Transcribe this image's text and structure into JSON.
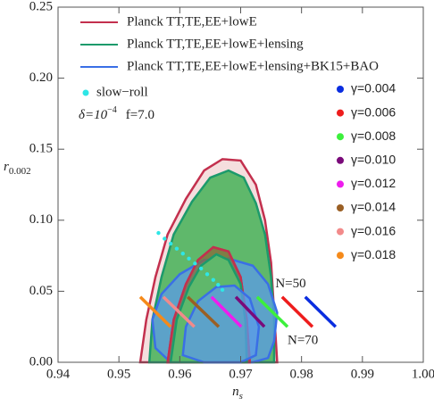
{
  "chart_data": {
    "type": "scatter",
    "x_label": {
      "text": "n",
      "sub": "s"
    },
    "y_label": {
      "text": "r",
      "sub": "0.002"
    },
    "xlim": [
      0.94,
      1.0
    ],
    "xticks": [
      0.94,
      0.95,
      0.96,
      0.97,
      0.98,
      0.99,
      {
        "value": 1.0,
        "label": "1.00"
      }
    ],
    "ylim": [
      0,
      0.25
    ],
    "yticks": [
      {
        "value": 0,
        "label": "0.00"
      },
      0.05,
      {
        "value": 0.1,
        "label": "0.10"
      },
      0.15,
      {
        "value": 0.2,
        "label": "0.20"
      },
      0.25
    ],
    "contours": [
      {
        "name": "Planck TT,TE,EE+lowE",
        "color": "#c3304e",
        "fill": "#f5dede",
        "levels": [
          {
            "x": [
              0.9535,
              0.9545,
              0.956,
              0.958,
              0.961,
              0.964,
              0.967,
              0.97,
              0.9725,
              0.974,
              0.975,
              0.9755,
              0.976
            ],
            "y": [
              0,
              0.03,
              0.06,
              0.09,
              0.115,
              0.135,
              0.143,
              0.142,
              0.125,
              0.1,
              0.07,
              0.035,
              0
            ]
          },
          {
            "x": [
              0.958,
              0.959,
              0.961,
              0.963,
              0.9655,
              0.968,
              0.97,
              0.971,
              0.9715
            ],
            "y": [
              0,
              0.03,
              0.055,
              0.072,
              0.081,
              0.078,
              0.06,
              0.03,
              0
            ]
          }
        ]
      },
      {
        "name": "Planck TT,TE,EE+lowE+lensing",
        "color": "#1c9a6b",
        "fill": "#5fb86b",
        "levels": [
          {
            "x": [
              0.955,
              0.9555,
              0.957,
              0.959,
              0.962,
              0.965,
              0.968,
              0.9705,
              0.9725,
              0.974,
              0.975,
              0.9755,
              0.9755
            ],
            "y": [
              0,
              0.03,
              0.06,
              0.09,
              0.113,
              0.13,
              0.135,
              0.13,
              0.112,
              0.09,
              0.06,
              0.03,
              0
            ]
          },
          {
            "x": [
              0.9585,
              0.9595,
              0.9615,
              0.9635,
              0.966,
              0.968,
              0.97,
              0.9708,
              0.971
            ],
            "y": [
              0,
              0.03,
              0.053,
              0.068,
              0.076,
              0.072,
              0.055,
              0.028,
              0
            ]
          }
        ]
      },
      {
        "name": "Planck TT,TE,EE+lowE+lensing+BK15+BAO",
        "color": "#3a6fe6",
        "fill": "#5b9be8",
        "levels": [
          {
            "x": [
              0.956,
              0.9555,
              0.957,
              0.96,
              0.964,
              0.968,
              0.972,
              0.9745,
              0.976,
              0.9755,
              0.9745,
              0.972,
              0.964,
              0.958
            ],
            "y": [
              0.01,
              0.03,
              0.048,
              0.062,
              0.072,
              0.073,
              0.068,
              0.055,
              0.035,
              0.015,
              0.003,
              0,
              0,
              0.002
            ]
          },
          {
            "x": [
              0.9605,
              0.961,
              0.963,
              0.966,
              0.969,
              0.9715,
              0.973,
              0.9725,
              0.97,
              0.964
            ],
            "y": [
              0.005,
              0.025,
              0.043,
              0.053,
              0.054,
              0.045,
              0.025,
              0.005,
              0,
              0
            ]
          }
        ]
      }
    ],
    "points": {
      "name": "slow−roll",
      "color": "#2ee6e6",
      "x": [
        0.9565,
        0.9575,
        0.9585,
        0.9595,
        0.9605,
        0.9615,
        0.9625,
        0.9635,
        0.9645,
        0.9655,
        0.9663,
        0.967
      ],
      "values": [
        0.091,
        0.087,
        0.0835,
        0.08,
        0.0765,
        0.073,
        0.0695,
        0.066,
        0.062,
        0.058,
        0.0545,
        0.051
      ]
    },
    "annotations": [
      "δ=10",
      "−4",
      "f=7.0",
      "N=50",
      "N=70"
    ],
    "series": [
      {
        "name": "γ=0.004",
        "color": "#0a2de0",
        "x": [
          0.9806,
          0.9856
        ],
        "values": [
          0.046,
          0.025
        ]
      },
      {
        "name": "γ=0.006",
        "color": "#ee1c1c",
        "x": [
          0.9768,
          0.9818
        ],
        "values": [
          0.046,
          0.025
        ]
      },
      {
        "name": "γ=0.008",
        "color": "#3cf03c",
        "x": [
          0.9727,
          0.9777
        ],
        "values": [
          0.046,
          0.025
        ]
      },
      {
        "name": "γ=0.010",
        "color": "#7a0a7a",
        "x": [
          0.9692,
          0.9739
        ],
        "values": [
          0.046,
          0.025
        ]
      },
      {
        "name": "γ=0.012",
        "color": "#ee1cee",
        "x": [
          0.9652,
          0.9701
        ],
        "values": [
          0.046,
          0.025
        ]
      },
      {
        "name": "γ=0.014",
        "color": "#9a5f24",
        "x": [
          0.9613,
          0.9664
        ],
        "values": [
          0.046,
          0.025
        ]
      },
      {
        "name": "γ=0.016",
        "color": "#f28a8a",
        "x": [
          0.9573,
          0.9624
        ],
        "values": [
          0.046,
          0.025
        ]
      },
      {
        "name": "γ=0.018",
        "color": "#f58a1a",
        "x": [
          0.9535,
          0.9585
        ],
        "values": [
          0.046,
          0.025
        ]
      }
    ]
  }
}
